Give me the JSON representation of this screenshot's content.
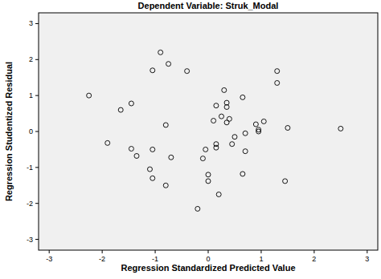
{
  "chart_data": {
    "type": "scatter",
    "title": "Dependent Variable: Struk_Modal",
    "x_label": "Regression Standardized Predicted Value",
    "y_label": "Regression Studentized Residual",
    "x": [
      -2.25,
      -1.9,
      -1.65,
      -1.45,
      -1.45,
      -1.35,
      -1.1,
      -1.05,
      -1.05,
      -1.05,
      -0.9,
      -0.8,
      -0.8,
      -0.75,
      -0.7,
      -0.4,
      -0.2,
      -0.1,
      -0.05,
      0,
      0,
      0.1,
      0.15,
      0.15,
      0.15,
      0.2,
      0.25,
      0.3,
      0.35,
      0.35,
      0.35,
      0.4,
      0.45,
      0.5,
      0.65,
      0.7,
      0.7,
      0.65,
      0.9,
      0.95,
      0.95,
      1.05,
      1.3,
      1.3,
      1.45,
      1.5,
      2.5
    ],
    "values": [
      1.0,
      -0.32,
      0.6,
      0.78,
      -0.48,
      -0.68,
      -1.05,
      -0.5,
      -1.3,
      1.7,
      2.2,
      0.18,
      -1.5,
      1.88,
      -0.72,
      1.68,
      -2.15,
      -0.75,
      -0.5,
      -1.2,
      -1.38,
      0.3,
      -0.45,
      -0.35,
      0.72,
      -1.75,
      0.42,
      1.15,
      0.68,
      0.8,
      0.25,
      0.35,
      -0.35,
      -0.15,
      0.95,
      -0.05,
      -0.55,
      -1.18,
      0.2,
      0.05,
      0.0,
      0.28,
      1.68,
      1.35,
      -1.38,
      0.1,
      0.08
    ],
    "xlim": [
      -3.2,
      3.2
    ],
    "ylim": [
      -3.3,
      3.3
    ],
    "xticks": [
      -3,
      -2,
      -1,
      0,
      1,
      2,
      3
    ],
    "yticks": [
      -3,
      -2,
      -1,
      0,
      1,
      2,
      3
    ],
    "grid": false,
    "marker": "circle",
    "color": "#000000"
  }
}
